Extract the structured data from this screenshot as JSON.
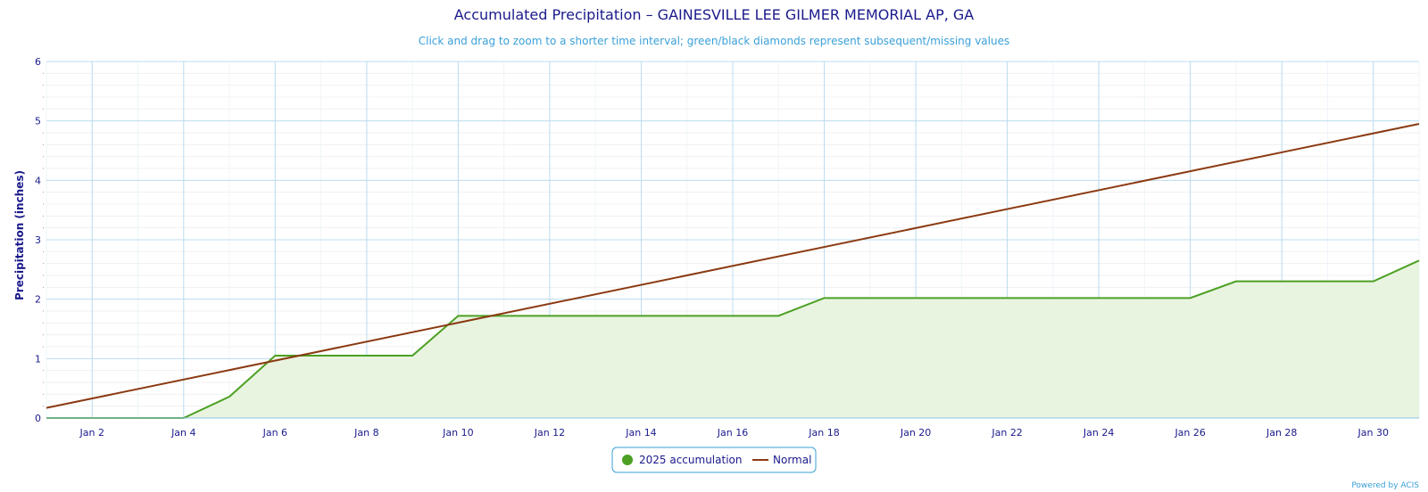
{
  "chart_data": {
    "type": "area",
    "title": "Accumulated Precipitation – GAINESVILLE LEE GILMER MEMORIAL AP, GA",
    "subtitle": "Click and drag to zoom to a shorter time interval; green/black diamonds represent subsequent/missing values",
    "ylabel": "Precipitation (inches)",
    "xlabel": "",
    "ylim": [
      0,
      6
    ],
    "yticks": [
      0,
      1,
      2,
      3,
      4,
      5,
      6
    ],
    "xlim": [
      1,
      31
    ],
    "xticks": [
      {
        "day": 2,
        "label": "Jan 2"
      },
      {
        "day": 4,
        "label": "Jan 4"
      },
      {
        "day": 6,
        "label": "Jan 6"
      },
      {
        "day": 8,
        "label": "Jan 8"
      },
      {
        "day": 10,
        "label": "Jan 10"
      },
      {
        "day": 12,
        "label": "Jan 12"
      },
      {
        "day": 14,
        "label": "Jan 14"
      },
      {
        "day": 16,
        "label": "Jan 16"
      },
      {
        "day": 18,
        "label": "Jan 18"
      },
      {
        "day": 20,
        "label": "Jan 20"
      },
      {
        "day": 22,
        "label": "Jan 22"
      },
      {
        "day": 24,
        "label": "Jan 24"
      },
      {
        "day": 26,
        "label": "Jan 26"
      },
      {
        "day": 28,
        "label": "Jan 28"
      },
      {
        "day": 30,
        "label": "Jan 30"
      }
    ],
    "grid": true,
    "legend_position": "bottom-center",
    "series": [
      {
        "name": "2025 accumulation",
        "kind": "area",
        "color": "#4ca023",
        "fill": "#e8f4e0",
        "x": [
          1,
          2,
          3,
          4,
          5,
          6,
          7,
          8,
          9,
          10,
          11,
          12,
          13,
          14,
          15,
          16,
          17,
          18,
          19,
          20,
          21,
          22,
          23,
          24,
          25,
          26,
          27,
          28,
          29,
          30,
          31
        ],
        "values": [
          0,
          0,
          0,
          0,
          0.36,
          1.05,
          1.05,
          1.05,
          1.05,
          1.72,
          1.72,
          1.72,
          1.72,
          1.72,
          1.72,
          1.72,
          1.72,
          2.02,
          2.02,
          2.02,
          2.02,
          2.02,
          2.02,
          2.02,
          2.02,
          2.02,
          2.3,
          2.3,
          2.3,
          2.3,
          2.65
        ]
      },
      {
        "name": "Normal",
        "kind": "line",
        "color": "#8b3a12",
        "x": [
          1,
          31
        ],
        "values": [
          0.17,
          4.95
        ]
      }
    ]
  },
  "credit": "Powered by ACIS"
}
